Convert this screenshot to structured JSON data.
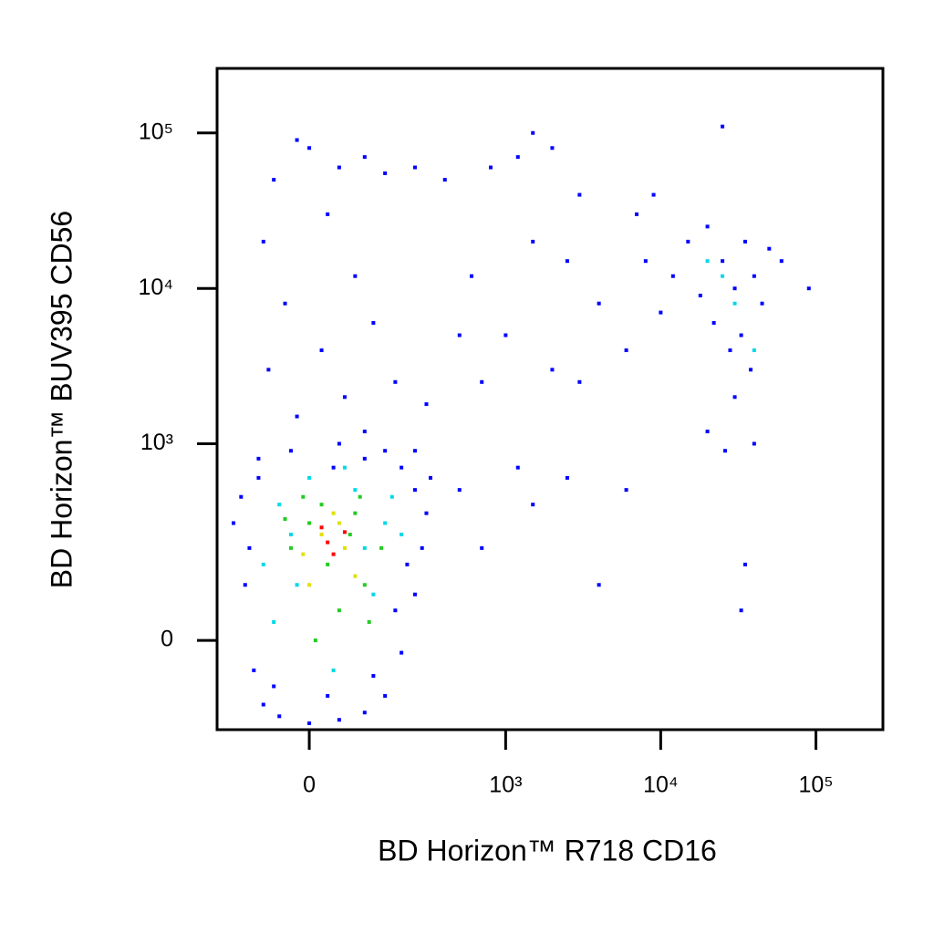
{
  "chart_data": {
    "type": "scatter",
    "xlabel": "BD Horizon™ R718 CD16",
    "ylabel": "BD Horizon™ BUV395 CD56",
    "xscale": "biexponential",
    "yscale": "biexponential",
    "xlim": [
      -200,
      270000
    ],
    "ylim": [
      -190,
      260000
    ],
    "xticks": [
      0,
      {
        "value": 1000,
        "label": "10³"
      },
      {
        "value": 10000,
        "label": "10⁴"
      },
      {
        "value": 100000,
        "label": "10⁵"
      }
    ],
    "yticks": [
      0,
      {
        "value": 1000,
        "label": "10³"
      },
      {
        "value": 10000,
        "label": "10⁴"
      },
      {
        "value": 100000,
        "label": "10⁵"
      }
    ],
    "series": [
      {
        "color": "#0000ff",
        "x": [
          -20,
          0,
          50,
          100,
          -60,
          150,
          250,
          400,
          30,
          -80,
          80,
          -40,
          120,
          20,
          -70,
          180,
          60,
          -20,
          100,
          250,
          -90,
          300,
          40,
          500,
          600,
          800,
          1500,
          1200,
          2000,
          3000,
          1500,
          2500,
          4000,
          3000,
          2000,
          700,
          1000,
          500,
          1200,
          2500,
          1500,
          700,
          4000,
          6000,
          15000,
          20000,
          25000,
          30000,
          35000,
          40000,
          45000,
          50000,
          18000,
          22000,
          28000,
          33000,
          38000,
          12000,
          10000,
          8000,
          9000,
          25000,
          30000,
          20000,
          26000,
          40000,
          35000,
          33000,
          90000,
          60000,
          6000,
          7000,
          -150,
          -120,
          -100,
          -80,
          -50,
          0,
          50,
          100,
          150,
          200,
          250,
          280,
          300,
          250,
          200,
          150,
          100,
          50,
          -30,
          -90,
          -130,
          -60,
          30,
          120,
          180,
          220,
          -110,
          320
        ],
        "y": [
          90000,
          80000,
          60000,
          70000,
          50000,
          55000,
          60000,
          50000,
          30000,
          20000,
          12000,
          8000,
          6000,
          4000,
          3000,
          2500,
          2000,
          1500,
          1200,
          900,
          800,
          1800,
          700,
          5000,
          12000,
          60000,
          100000,
          70000,
          80000,
          40000,
          20000,
          15000,
          8000,
          2500,
          3000,
          2500,
          5000,
          500,
          700,
          600,
          400,
          200,
          100,
          500,
          20000,
          25000,
          15000,
          10000,
          20000,
          12000,
          8000,
          18000,
          9000,
          6000,
          4000,
          5000,
          3000,
          12000,
          7000,
          15000,
          40000,
          110000,
          2000,
          1200,
          900,
          1000,
          150,
          50,
          10000,
          15000,
          4000,
          30000,
          300,
          100,
          -50,
          -120,
          -150,
          -170,
          -160,
          -140,
          -100,
          -20,
          80,
          200,
          350,
          500,
          700,
          900,
          800,
          1000,
          900,
          600,
          450,
          -80,
          -100,
          -60,
          50,
          150,
          200,
          600
        ]
      },
      {
        "color": "#00d8e8",
        "x": [
          -50,
          0,
          80,
          150,
          -20,
          40,
          120,
          200,
          -80,
          60,
          100,
          -30,
          25000,
          30000,
          20000,
          40000,
          170,
          -60
        ],
        "y": [
          400,
          600,
          500,
          300,
          100,
          -50,
          80,
          250,
          150,
          700,
          200,
          250,
          12000,
          8000,
          15000,
          4000,
          450,
          30
        ]
      },
      {
        "color": "#22cc22",
        "x": [
          0,
          30,
          -30,
          80,
          50,
          100,
          -10,
          140,
          20,
          70,
          -40,
          110,
          10,
          90
        ],
        "y": [
          300,
          150,
          200,
          350,
          50,
          100,
          450,
          200,
          400,
          250,
          320,
          30,
          0,
          450
        ]
      },
      {
        "color": "#e0e000",
        "x": [
          20,
          60,
          -10,
          40,
          80,
          0,
          50
        ],
        "y": [
          250,
          200,
          180,
          350,
          120,
          100,
          300
        ]
      },
      {
        "color": "#ff0000",
        "x": [
          30,
          40,
          20,
          60
        ],
        "y": [
          220,
          180,
          280,
          260
        ]
      }
    ]
  }
}
